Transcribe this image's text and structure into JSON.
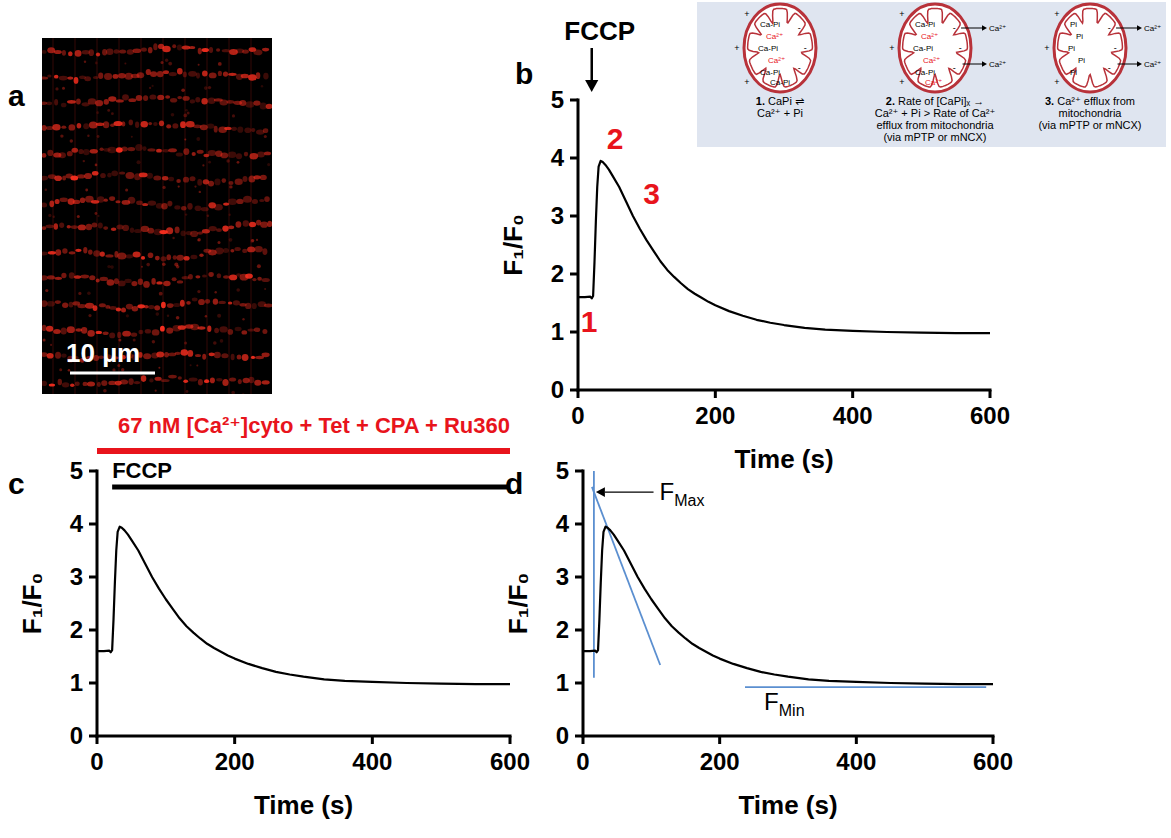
{
  "image": {
    "panel": "a",
    "scale_bar": "10 µm"
  },
  "inset": {
    "steps": [
      {
        "number": "1.",
        "caption": [
          "CaPi ⇌",
          "Ca²⁺ + Pi"
        ],
        "contents": [
          {
            "text": "Ca-Pi",
            "color": "#000000"
          },
          {
            "text": "Ca²⁺",
            "color": "#e8141c"
          },
          {
            "text": "Ca-Pi",
            "color": "#000000"
          },
          {
            "text": "Ca²⁺",
            "color": "#e8141c"
          },
          {
            "text": "Ca-Pi",
            "color": "#000000"
          },
          {
            "text": "Ca-Pi",
            "color": "#000000"
          }
        ],
        "charges": [
          "+",
          "-",
          "+",
          "-",
          "+",
          "-"
        ]
      },
      {
        "number": "2.",
        "caption": [
          "Rate of [CaPi]ₓ →",
          "Ca²⁺ + Pi > Rate of Ca²⁺",
          "efflux from mitochondria",
          "(via mPTP or mNCX)"
        ],
        "contents": [
          {
            "text": "Ca-Pi",
            "color": "#000000"
          },
          {
            "text": "Ca²⁺",
            "color": "#e8141c"
          },
          {
            "text": "Ca-Pi",
            "color": "#000000"
          },
          {
            "text": "Ca²⁺",
            "color": "#e8141c"
          },
          {
            "text": "Ca-Pi",
            "color": "#000000"
          },
          {
            "text": "Ca²⁺",
            "color": "#e8141c"
          }
        ],
        "charges": [
          "+",
          "-",
          "+",
          "-",
          "+",
          "-"
        ],
        "efflux": [
          "Ca²⁺",
          "Ca²⁺"
        ]
      },
      {
        "number": "3.",
        "caption": [
          "Ca²⁺ efflux from",
          "mitochondria",
          "(via mPTP or mNCX)"
        ],
        "contents": [
          {
            "text": "Pi",
            "color": "#000000"
          },
          {
            "text": "Pi",
            "color": "#000000"
          },
          {
            "text": "Pi",
            "color": "#000000"
          },
          {
            "text": "Pi",
            "color": "#000000"
          },
          {
            "text": "Pi",
            "color": "#000000"
          }
        ],
        "charges": [
          "+",
          "-",
          "+",
          "-",
          "+",
          "-"
        ],
        "efflux": [
          "Ca²⁺",
          "Ca²⁺"
        ]
      }
    ]
  },
  "chart_data": [
    {
      "type": "line",
      "panel": "b",
      "x": [
        0,
        10,
        18,
        20,
        22,
        24,
        26,
        28,
        30,
        33,
        36,
        40,
        45,
        50,
        60,
        70,
        80,
        90,
        100,
        110,
        120,
        130,
        140,
        150,
        160,
        170,
        180,
        190,
        200,
        220,
        240,
        260,
        280,
        300,
        330,
        360,
        400,
        450,
        500,
        550,
        600
      ],
      "values": [
        1.6,
        1.6,
        1.61,
        1.58,
        1.62,
        2.2,
        2.9,
        3.5,
        3.85,
        3.95,
        3.93,
        3.88,
        3.8,
        3.7,
        3.5,
        3.25,
        3.0,
        2.78,
        2.58,
        2.4,
        2.22,
        2.07,
        1.95,
        1.84,
        1.74,
        1.66,
        1.59,
        1.52,
        1.46,
        1.36,
        1.28,
        1.21,
        1.16,
        1.12,
        1.07,
        1.04,
        1.02,
        1.0,
        0.99,
        0.98,
        0.98
      ],
      "color": "#000000",
      "xlim": [
        0,
        600
      ],
      "ylim": [
        0,
        5
      ],
      "xticks": [
        0,
        200,
        400,
        600
      ],
      "yticks": [
        0,
        1,
        2,
        3,
        4,
        5
      ],
      "x_label": "Time (s)",
      "y_label": "F₁/F₀",
      "event": {
        "text": "FCCP",
        "x": 20
      },
      "annotations": [
        {
          "text": "1",
          "x": 4,
          "y": 1.0,
          "color": "#e8141c"
        },
        {
          "text": "2",
          "x": 42,
          "y": 4.15,
          "color": "#e8141c"
        },
        {
          "text": "3",
          "x": 95,
          "y": 3.2,
          "color": "#e8141c"
        }
      ]
    },
    {
      "type": "line",
      "panel": "c",
      "x": [
        0,
        10,
        18,
        20,
        22,
        24,
        26,
        28,
        30,
        33,
        36,
        40,
        45,
        50,
        60,
        70,
        80,
        90,
        100,
        110,
        120,
        130,
        140,
        150,
        160,
        170,
        180,
        190,
        200,
        220,
        240,
        260,
        280,
        300,
        330,
        360,
        400,
        450,
        500,
        550,
        600
      ],
      "values": [
        1.6,
        1.6,
        1.61,
        1.58,
        1.62,
        2.2,
        2.9,
        3.5,
        3.85,
        3.95,
        3.93,
        3.88,
        3.8,
        3.7,
        3.5,
        3.25,
        3.0,
        2.78,
        2.58,
        2.4,
        2.22,
        2.07,
        1.95,
        1.84,
        1.74,
        1.66,
        1.59,
        1.52,
        1.46,
        1.36,
        1.28,
        1.21,
        1.16,
        1.12,
        1.07,
        1.04,
        1.02,
        1.0,
        0.99,
        0.98,
        0.98
      ],
      "color": "#000000",
      "xlim": [
        0,
        600
      ],
      "ylim": [
        0,
        5
      ],
      "xticks": [
        0,
        200,
        400,
        600
      ],
      "yticks": [
        0,
        1,
        2,
        3,
        4,
        5
      ],
      "x_label": "Time (s)",
      "y_label": "F₁/F₀",
      "treatments": [
        {
          "text": "67 nM [Ca²⁺]cyto + Tet + CPA + Ru360",
          "color": "#e8141c",
          "x": [
            0,
            600
          ]
        },
        {
          "text": "FCCP",
          "color": "#000000",
          "x": [
            22,
            600
          ]
        }
      ]
    },
    {
      "type": "line",
      "panel": "d",
      "x": [
        0,
        10,
        18,
        20,
        22,
        24,
        26,
        28,
        30,
        33,
        36,
        40,
        45,
        50,
        60,
        70,
        80,
        90,
        100,
        110,
        120,
        130,
        140,
        150,
        160,
        170,
        180,
        190,
        200,
        220,
        240,
        260,
        280,
        300,
        330,
        360,
        400,
        450,
        500,
        550,
        600
      ],
      "values": [
        1.6,
        1.6,
        1.61,
        1.58,
        1.62,
        2.2,
        2.9,
        3.5,
        3.85,
        3.95,
        3.93,
        3.88,
        3.8,
        3.7,
        3.5,
        3.25,
        3.0,
        2.78,
        2.58,
        2.4,
        2.22,
        2.07,
        1.95,
        1.84,
        1.74,
        1.66,
        1.59,
        1.52,
        1.46,
        1.36,
        1.28,
        1.21,
        1.16,
        1.12,
        1.07,
        1.04,
        1.02,
        1.0,
        0.99,
        0.98,
        0.98
      ],
      "color": "#000000",
      "xlim": [
        0,
        600
      ],
      "ylim": [
        0,
        5
      ],
      "xticks": [
        0,
        200,
        400,
        600
      ],
      "yticks": [
        0,
        1,
        2,
        3,
        4,
        5
      ],
      "x_label": "Time (s)",
      "y_label": "F₁/F₀",
      "fit_lines": [
        {
          "x": [
            16,
            16
          ],
          "values": [
            1.1,
            5.0
          ],
          "color": "#5b8fd0"
        },
        {
          "x": [
            13,
            113
          ],
          "values": [
            4.7,
            1.34
          ],
          "color": "#5b8fd0"
        },
        {
          "x": [
            237,
            590
          ],
          "values": [
            0.92,
            0.92
          ],
          "color": "#5b8fd0"
        }
      ],
      "annotations": [
        {
          "text": "F",
          "subscript": "Max",
          "x": 112,
          "y": 4.45,
          "color": "#000000"
        },
        {
          "text": "F",
          "subscript": "Min",
          "x": 265,
          "y": 0.5,
          "color": "#000000"
        }
      ]
    }
  ]
}
